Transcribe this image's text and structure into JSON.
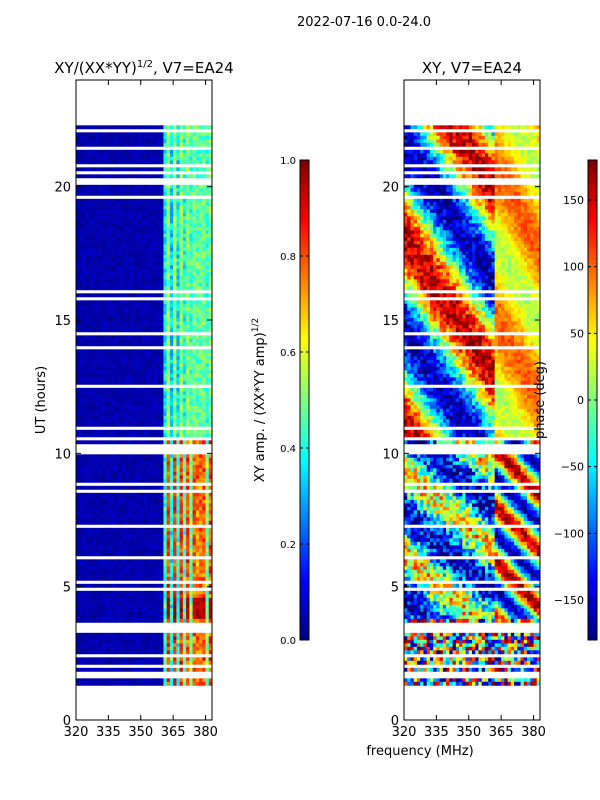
{
  "figure": {
    "suptitle": "2022-07-16 0.0-24.0",
    "shared_xlabel": "frequency (MHz)"
  },
  "colors": {
    "jet": [
      "#00007f",
      "#0000ff",
      "#007fff",
      "#00ffff",
      "#7fff7f",
      "#ffff00",
      "#ff7f00",
      "#ff0000",
      "#7f0000"
    ]
  },
  "chart_data": [
    {
      "type": "heatmap",
      "title_main": "XY/(XX*YY)",
      "title_sup": "1/2",
      "title_tail": ", V7=EA24",
      "xlabel": "",
      "ylabel": "UT (hours)",
      "xlim": [
        320,
        383
      ],
      "ylim": [
        0,
        24
      ],
      "xticks": [
        320,
        335,
        350,
        365,
        380
      ],
      "yticks": [
        0,
        5,
        10,
        15,
        20
      ],
      "data_time_range_hours": [
        1.3,
        22.3
      ],
      "colorbar": {
        "label_main": "XY amp. / (XX*YY amp)",
        "label_sup": "1/2",
        "range": [
          0.0,
          1.0
        ],
        "ticks": [
          "0.0",
          "0.2",
          "0.4",
          "0.6",
          "0.8",
          "1.0"
        ]
      }
    },
    {
      "type": "heatmap",
      "title_main": "XY, V7=EA24",
      "xlabel": "frequency (MHz)",
      "ylabel": "",
      "xlim": [
        320,
        383
      ],
      "ylim": [
        0,
        24
      ],
      "xticks": [
        320,
        335,
        350,
        365,
        380
      ],
      "yticks": [
        0,
        5,
        10,
        15,
        20
      ],
      "data_time_range_hours": [
        1.3,
        22.3
      ],
      "colorbar": {
        "label_main": "phase (deg)",
        "range": [
          -180,
          180
        ],
        "ticks": [
          "−150",
          "−100",
          "−50",
          "0",
          "50",
          "100",
          "150"
        ],
        "tick_values": [
          -150,
          -100,
          -50,
          0,
          50,
          100,
          150
        ]
      }
    }
  ]
}
